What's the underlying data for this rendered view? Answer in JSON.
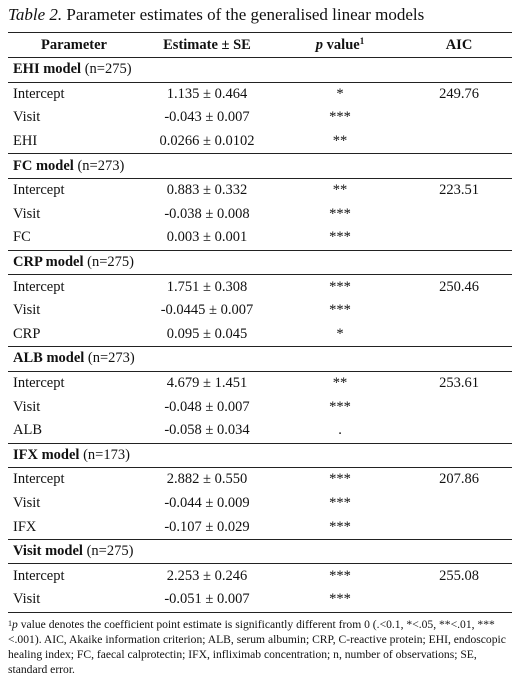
{
  "caption": {
    "label": "Table 2.",
    "title": "Parameter estimates of the generalised linear models"
  },
  "header": {
    "parameter": "Parameter",
    "estimate": "Estimate ± SE",
    "p_value_italic": "p",
    "p_value_rest": " value",
    "p_value_sup": "1",
    "aic": "AIC"
  },
  "groups": [
    {
      "name": "EHI model",
      "n": " (n=275)",
      "rows": [
        {
          "parameter": "Intercept",
          "estimate": "1.135 ± 0.464",
          "p": "*",
          "aic": "249.76"
        },
        {
          "parameter": "Visit",
          "estimate": "-0.043 ± 0.007",
          "p": "***",
          "aic": ""
        },
        {
          "parameter": "EHI",
          "estimate": "0.0266 ± 0.0102",
          "p": "**",
          "aic": ""
        }
      ]
    },
    {
      "name": "FC model",
      "n": " (n=273)",
      "rows": [
        {
          "parameter": "Intercept",
          "estimate": "0.883 ± 0.332",
          "p": "**",
          "aic": "223.51"
        },
        {
          "parameter": "Visit",
          "estimate": "-0.038 ± 0.008",
          "p": "***",
          "aic": ""
        },
        {
          "parameter": "FC",
          "estimate": "0.003 ± 0.001",
          "p": "***",
          "aic": ""
        }
      ]
    },
    {
      "name": "CRP model",
      "n": " (n=275)",
      "rows": [
        {
          "parameter": "Intercept",
          "estimate": "1.751 ± 0.308",
          "p": "***",
          "aic": "250.46"
        },
        {
          "parameter": "Visit",
          "estimate": "-0.0445 ± 0.007",
          "p": "***",
          "aic": ""
        },
        {
          "parameter": "CRP",
          "estimate": "0.095 ± 0.045",
          "p": "*",
          "aic": ""
        }
      ]
    },
    {
      "name": "ALB model",
      "n": " (n=273)",
      "rows": [
        {
          "parameter": "Intercept",
          "estimate": "4.679 ± 1.451",
          "p": "**",
          "aic": "253.61"
        },
        {
          "parameter": "Visit",
          "estimate": "-0.048 ± 0.007",
          "p": "***",
          "aic": ""
        },
        {
          "parameter": "ALB",
          "estimate": "-0.058 ± 0.034",
          "p": ".",
          "aic": ""
        }
      ]
    },
    {
      "name": "IFX model",
      "n": " (n=173)",
      "rows": [
        {
          "parameter": "Intercept",
          "estimate": "2.882 ± 0.550",
          "p": "***",
          "aic": "207.86"
        },
        {
          "parameter": "Visit",
          "estimate": "-0.044 ± 0.009",
          "p": "***",
          "aic": ""
        },
        {
          "parameter": "IFX",
          "estimate": "-0.107 ± 0.029",
          "p": "***",
          "aic": ""
        }
      ]
    },
    {
      "name": "Visit model",
      "n": " (n=275)",
      "rows": [
        {
          "parameter": "Intercept",
          "estimate": "2.253 ± 0.246",
          "p": "***",
          "aic": "255.08"
        },
        {
          "parameter": "Visit",
          "estimate": "-0.051 ± 0.007",
          "p": "***",
          "aic": ""
        }
      ]
    }
  ],
  "footnote": {
    "sup": "1",
    "p_italic": "p",
    "text": " value denotes the coefficient point estimate is significantly different from 0 (.<0.1, *<.05, **<.01, ***<.001). AIC, Akaike information criterion; ALB, serum albumin; CRP, C-reactive protein; EHI, endoscopic healing index; FC, faecal calprotectin; IFX, infliximab concentration; n, number of observations; SE, standard error."
  }
}
